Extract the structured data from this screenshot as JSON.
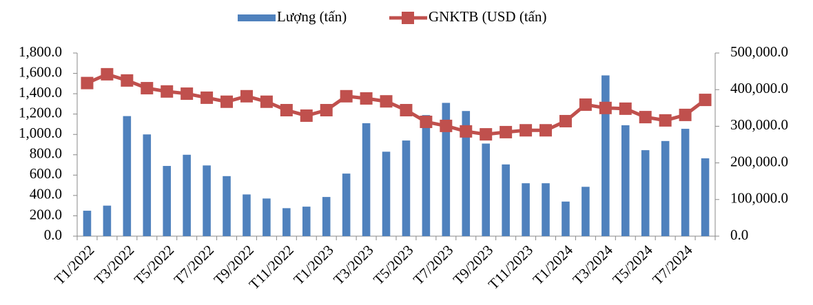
{
  "chart_data": {
    "type": "bar_line",
    "categories": [
      "T1/2022",
      null,
      "T3/2022",
      null,
      "T5/2022",
      null,
      "T7/2022",
      null,
      "T9/2022",
      null,
      "T11/2022",
      null,
      "T1/2023",
      null,
      "T3/2023",
      null,
      "T5/2023",
      null,
      "T7/2023",
      null,
      "T9/2023",
      null,
      "T11/2023",
      null,
      "T1/2024",
      null,
      "T3/2024",
      null,
      "T5/2024",
      null,
      "T7/2024",
      null
    ],
    "series": [
      {
        "name": "Lượng (tấn)",
        "color": "#4f81bd",
        "kind": "bar",
        "values": [
          250,
          300,
          1180,
          1000,
          690,
          800,
          695,
          590,
          410,
          370,
          275,
          290,
          385,
          615,
          1110,
          830,
          940,
          1190,
          1310,
          1230,
          910,
          705,
          520,
          520,
          340,
          485,
          1580,
          1090,
          845,
          935,
          1055,
          765
        ]
      },
      {
        "name": "GNKTB (USD (tấn)",
        "color": "#c0504d",
        "kind": "line",
        "axis": "y2",
        "values": [
          418000,
          442000,
          425000,
          404000,
          395000,
          389000,
          378000,
          367000,
          382000,
          367000,
          344000,
          329000,
          344000,
          382000,
          376000,
          368000,
          344000,
          312000,
          301000,
          286000,
          278000,
          284000,
          289000,
          289000,
          314000,
          359000,
          350000,
          348000,
          325000,
          316000,
          331000,
          372000
        ]
      }
    ],
    "ylim": [
      0,
      1800
    ],
    "yticks": [
      {
        "value": 0,
        "label": "0.0"
      },
      {
        "value": 200,
        "label": "200.0"
      },
      {
        "value": 400,
        "label": "400.0"
      },
      {
        "value": 600,
        "label": "600.0"
      },
      {
        "value": 800,
        "label": "800.0"
      },
      {
        "value": 1000,
        "label": "1,000.0"
      },
      {
        "value": 1200,
        "label": "1,200.0"
      },
      {
        "value": 1400,
        "label": "1,400.0"
      },
      {
        "value": 1600,
        "label": "1,600.0"
      },
      {
        "value": 1800,
        "label": "1,800.0"
      }
    ],
    "y2lim": [
      0,
      500000
    ],
    "y2ticks": [
      {
        "value": 0,
        "label": "0.0"
      },
      {
        "value": 100000,
        "label": "100,000.0"
      },
      {
        "value": 200000,
        "label": "200,000.0"
      },
      {
        "value": 300000,
        "label": "300,000.0"
      },
      {
        "value": 400000,
        "label": "400,000.0"
      },
      {
        "value": 500000,
        "label": "500,000.0"
      }
    ],
    "legend": "top"
  }
}
